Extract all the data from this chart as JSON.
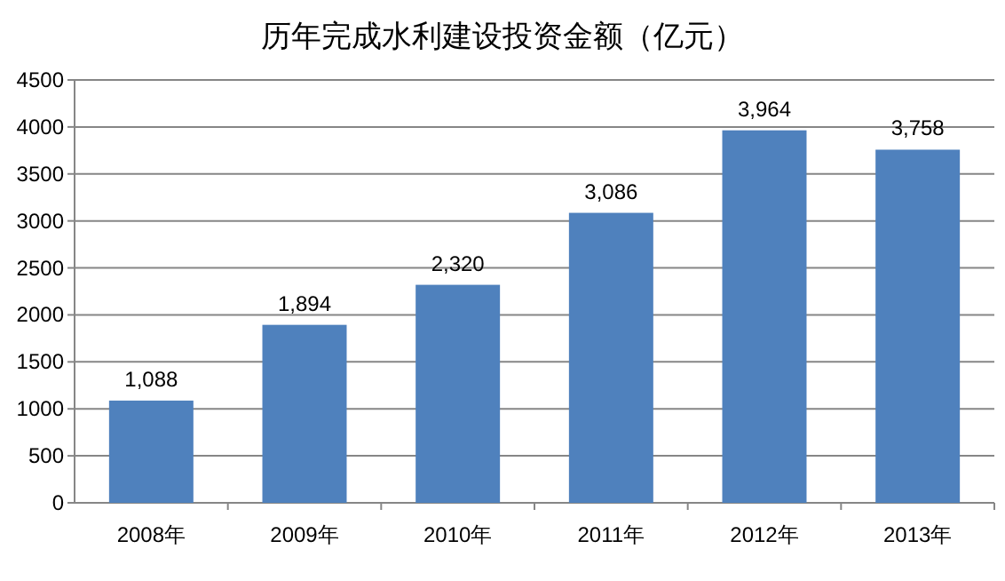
{
  "chart_data": {
    "type": "bar",
    "title": "历年完成水利建设投资金额（亿元）",
    "categories": [
      "2008年",
      "2009年",
      "2010年",
      "2011年",
      "2012年",
      "2013年"
    ],
    "values": [
      1088,
      1894,
      2320,
      3086,
      3964,
      3758
    ],
    "value_labels": [
      "1,088",
      "1,894",
      "2,320",
      "3,086",
      "3,964",
      "3,758"
    ],
    "color": "#4f81bd",
    "ylim": [
      0,
      4500
    ],
    "yticks": [
      0,
      500,
      1000,
      1500,
      2000,
      2500,
      3000,
      3500,
      4000,
      4500
    ],
    "grid": "y"
  }
}
